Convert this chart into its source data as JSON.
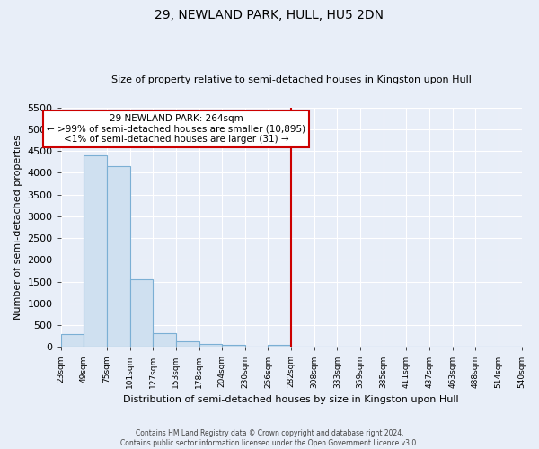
{
  "title": "29, NEWLAND PARK, HULL, HU5 2DN",
  "subtitle": "Size of property relative to semi-detached houses in Kingston upon Hull",
  "bar_values": [
    300,
    4400,
    4150,
    1550,
    325,
    130,
    65,
    50,
    0,
    40,
    0,
    0,
    0,
    0,
    0,
    0,
    0,
    0,
    0,
    0
  ],
  "bin_labels": [
    "23sqm",
    "49sqm",
    "75sqm",
    "101sqm",
    "127sqm",
    "153sqm",
    "178sqm",
    "204sqm",
    "230sqm",
    "256sqm",
    "282sqm",
    "308sqm",
    "333sqm",
    "359sqm",
    "385sqm",
    "411sqm",
    "437sqm",
    "463sqm",
    "488sqm",
    "514sqm",
    "540sqm"
  ],
  "bar_color": "#cfe0f0",
  "bar_edge_color": "#7bafd4",
  "vline_color": "#cc0000",
  "vline_x_index": 9.5,
  "ylim": [
    0,
    5500
  ],
  "yticks": [
    0,
    500,
    1000,
    1500,
    2000,
    2500,
    3000,
    3500,
    4000,
    4500,
    5000,
    5500
  ],
  "ylabel": "Number of semi-detached properties",
  "xlabel": "Distribution of semi-detached houses by size in Kingston upon Hull",
  "annotation_title": "29 NEWLAND PARK: 264sqm",
  "annotation_line1": "← >99% of semi-detached houses are smaller (10,895)",
  "annotation_line2": "<1% of semi-detached houses are larger (31) →",
  "annotation_box_color": "#ffffff",
  "annotation_box_edge_color": "#cc0000",
  "footer_line1": "Contains HM Land Registry data © Crown copyright and database right 2024.",
  "footer_line2": "Contains public sector information licensed under the Open Government Licence v3.0.",
  "background_color": "#e8eef8",
  "grid_color": "#ffffff"
}
